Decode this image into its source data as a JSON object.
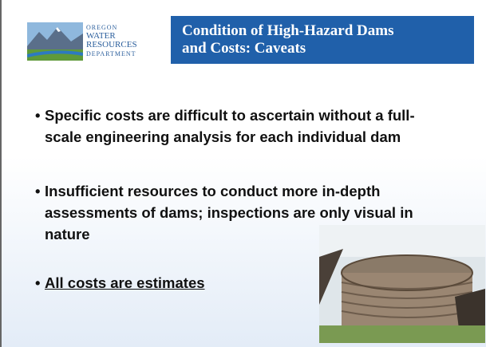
{
  "logo": {
    "lines": [
      "OREGON",
      "WATER",
      "RESOURCES",
      "DEPARTMENT"
    ]
  },
  "title": {
    "lines": [
      "Condition of High-Hazard Dams",
      "and Costs: Caveats"
    ]
  },
  "bullets": [
    "Specific costs are difficult to ascertain without a full-scale engineering analysis for each individual dam",
    "Insufficient resources to conduct more in-depth assessments of dams; inspections are only visual in nature",
    "All costs are estimates"
  ]
}
